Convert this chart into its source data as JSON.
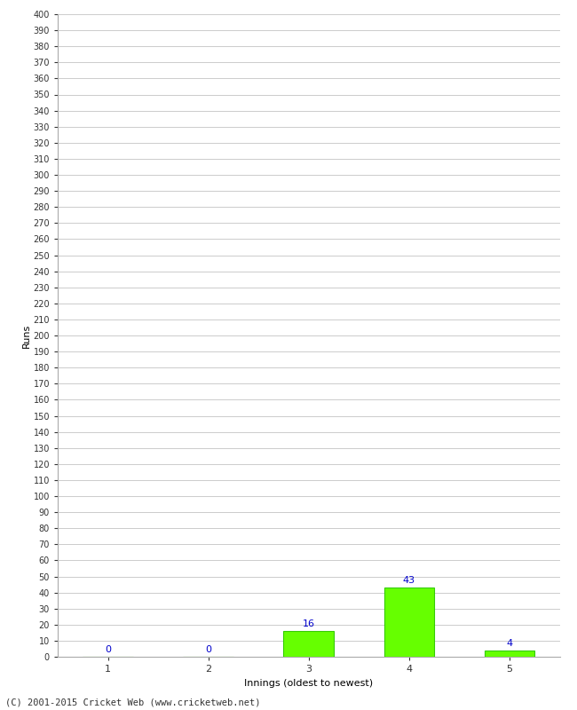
{
  "categories": [
    1,
    2,
    3,
    4,
    5
  ],
  "values": [
    0,
    0,
    16,
    43,
    4
  ],
  "bar_color": "#66ff00",
  "bar_edge_color": "#33cc00",
  "label_color": "#0000cc",
  "xlabel": "Innings (oldest to newest)",
  "ylabel": "Runs",
  "ylim": [
    0,
    400
  ],
  "ytick_step": 10,
  "background_color": "#ffffff",
  "grid_color": "#cccccc",
  "footer": "(C) 2001-2015 Cricket Web (www.cricketweb.net)"
}
